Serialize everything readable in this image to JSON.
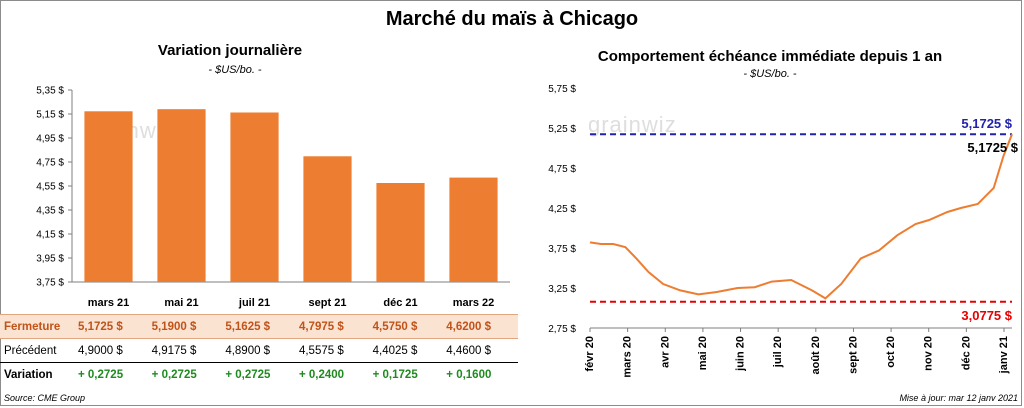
{
  "title": "Marché du maïs à Chicago",
  "left": {
    "title": "Variation journalière",
    "unit": "- $US/bo. -",
    "watermark": "grainwiz",
    "bar_color": "#ed7d31",
    "row_labels": {
      "close": "Fermeture",
      "prev": "Précédent",
      "change": "Variation"
    }
  },
  "right": {
    "title": "Comportement échéance immédiate depuis 1 an",
    "unit": "- $US/bo. -",
    "watermark": "grainwiz",
    "line_color": "#ed7d31",
    "high_color": "#2222aa",
    "low_color": "#e60000",
    "high_label": "5,1725 $",
    "low_label": "3,0775 $",
    "last_label": "5,1725 $"
  },
  "footer": {
    "source": "Source: CME Group",
    "updated": "Mise à jour: mar 12 janv 2021"
  },
  "chart_data": [
    {
      "type": "bar",
      "title": "Variation journalière",
      "categories": [
        "mars 21",
        "mai 21",
        "juil 21",
        "sept 21",
        "déc 21",
        "mars 22"
      ],
      "values": [
        5.1725,
        5.19,
        5.1625,
        4.7975,
        4.575,
        4.62
      ],
      "ylim": [
        3.75,
        5.35
      ],
      "yticks": [
        "3,75 $",
        "3,95 $",
        "4,15 $",
        "4,35 $",
        "4,55 $",
        "4,75 $",
        "4,95 $",
        "5,15 $",
        "5,35 $"
      ],
      "table": {
        "close": [
          "5,1725  $",
          "5,1900  $",
          "5,1625  $",
          "4,7975  $",
          "4,5750  $",
          "4,6200  $"
        ],
        "prev": [
          "4,9000  $",
          "4,9175  $",
          "4,8900  $",
          "4,5575  $",
          "4,4025  $",
          "4,4600  $"
        ],
        "change": [
          "+ 0,2725",
          "+ 0,2725",
          "+ 0,2725",
          "+ 0,2400",
          "+ 0,1725",
          "+ 0,1600"
        ]
      },
      "grid": false
    },
    {
      "type": "line",
      "title": "Comportement échéance immédiate depuis 1 an",
      "ylim": [
        2.75,
        5.75
      ],
      "yticks": [
        "2,75 $",
        "3,25 $",
        "3,75 $",
        "4,25 $",
        "4,75 $",
        "5,25 $",
        "5,75 $"
      ],
      "xticks": [
        "févr 20",
        "mars 20",
        "avr 20",
        "mai 20",
        "juin 20",
        "juil 20",
        "août 20",
        "sept 20",
        "oct 20",
        "nov 20",
        "déc 20",
        "janv 21"
      ],
      "x": [
        "2020-02-01",
        "2020-02-10",
        "2020-02-20",
        "2020-03-01",
        "2020-03-10",
        "2020-03-20",
        "2020-04-01",
        "2020-04-15",
        "2020-04-30",
        "2020-05-15",
        "2020-06-01",
        "2020-06-15",
        "2020-06-29",
        "2020-07-15",
        "2020-08-01",
        "2020-08-12",
        "2020-08-25",
        "2020-09-10",
        "2020-09-25",
        "2020-10-10",
        "2020-10-25",
        "2020-11-05",
        "2020-11-20",
        "2020-12-01",
        "2020-12-15",
        "2020-12-28",
        "2021-01-05",
        "2021-01-12"
      ],
      "values": [
        3.82,
        3.8,
        3.8,
        3.76,
        3.62,
        3.45,
        3.3,
        3.22,
        3.17,
        3.2,
        3.25,
        3.26,
        3.33,
        3.35,
        3.22,
        3.12,
        3.3,
        3.62,
        3.72,
        3.91,
        4.05,
        4.1,
        4.2,
        4.25,
        4.3,
        4.5,
        4.9,
        5.1725
      ],
      "reference_lines": [
        {
          "value": 5.1725,
          "style": "dashed"
        },
        {
          "value": 3.0775,
          "style": "dashed"
        }
      ],
      "grid": false
    }
  ]
}
